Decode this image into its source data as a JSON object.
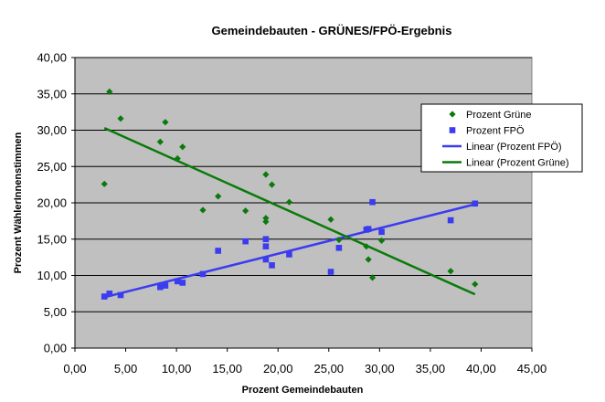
{
  "chart_data": {
    "type": "scatter",
    "title": "Gemeindebauten - GRÜNES/FPÖ-Ergebnis",
    "xlabel": "Prozent Gemeindebauten",
    "ylabel": "Prozent WählerInnenstimmen",
    "xlim": [
      0,
      45
    ],
    "ylim": [
      0,
      40
    ],
    "x_ticks": [
      0,
      5,
      10,
      15,
      20,
      25,
      30,
      35,
      40,
      45
    ],
    "y_ticks": [
      0,
      5,
      10,
      15,
      20,
      25,
      30,
      35,
      40
    ],
    "x_tick_labels": [
      "0,00",
      "5,00",
      "10,00",
      "15,00",
      "20,00",
      "25,00",
      "30,00",
      "35,00",
      "40,00",
      "45,00"
    ],
    "y_tick_labels": [
      "0,00",
      "5,00",
      "10,00",
      "15,00",
      "20,00",
      "25,00",
      "30,00",
      "35,00",
      "40,00"
    ],
    "grid": {
      "horizontal": true,
      "vertical": false
    },
    "plot_background": "#c0c0c0",
    "legend_position": "right",
    "series": [
      {
        "name": "Prozent Grüne",
        "marker": "diamond",
        "color": "#0a7a0a",
        "points": [
          [
            2.9,
            22.6
          ],
          [
            3.4,
            35.3
          ],
          [
            4.5,
            31.6
          ],
          [
            8.4,
            28.4
          ],
          [
            8.9,
            31.1
          ],
          [
            10.1,
            26.1
          ],
          [
            10.6,
            27.7
          ],
          [
            12.6,
            19.0
          ],
          [
            14.1,
            20.9
          ],
          [
            16.8,
            18.9
          ],
          [
            18.8,
            23.9
          ],
          [
            18.8,
            17.9
          ],
          [
            18.8,
            17.4
          ],
          [
            19.4,
            22.5
          ],
          [
            21.1,
            20.1
          ],
          [
            25.2,
            17.7
          ],
          [
            26.0,
            14.9
          ],
          [
            28.7,
            14.0
          ],
          [
            28.9,
            12.2
          ],
          [
            29.3,
            9.7
          ],
          [
            30.2,
            14.8
          ],
          [
            37.0,
            10.6
          ],
          [
            39.4,
            8.8
          ]
        ]
      },
      {
        "name": "Prozent FPÖ",
        "marker": "square",
        "color": "#3b3bf0",
        "points": [
          [
            2.9,
            7.1
          ],
          [
            3.4,
            7.5
          ],
          [
            4.5,
            7.3
          ],
          [
            8.4,
            8.4
          ],
          [
            8.9,
            8.6
          ],
          [
            10.1,
            9.2
          ],
          [
            10.6,
            9.0
          ],
          [
            12.6,
            10.2
          ],
          [
            14.1,
            13.4
          ],
          [
            16.8,
            14.7
          ],
          [
            18.8,
            15.0
          ],
          [
            18.8,
            14.0
          ],
          [
            18.8,
            12.2
          ],
          [
            19.4,
            11.4
          ],
          [
            21.1,
            12.9
          ],
          [
            25.2,
            10.5
          ],
          [
            26.0,
            13.8
          ],
          [
            28.7,
            16.3
          ],
          [
            28.9,
            16.4
          ],
          [
            29.3,
            20.1
          ],
          [
            30.2,
            16.0
          ],
          [
            37.0,
            17.6
          ],
          [
            39.4,
            19.9
          ]
        ]
      }
    ],
    "trendlines": [
      {
        "name": "Linear (Prozent FPÖ)",
        "color": "#3b3bf0",
        "from": [
          2.9,
          7.0
        ],
        "to": [
          39.4,
          19.8
        ]
      },
      {
        "name": "Linear (Prozent Grüne)",
        "color": "#0a7a0a",
        "from": [
          2.9,
          30.3
        ],
        "to": [
          39.4,
          7.4
        ]
      }
    ]
  }
}
